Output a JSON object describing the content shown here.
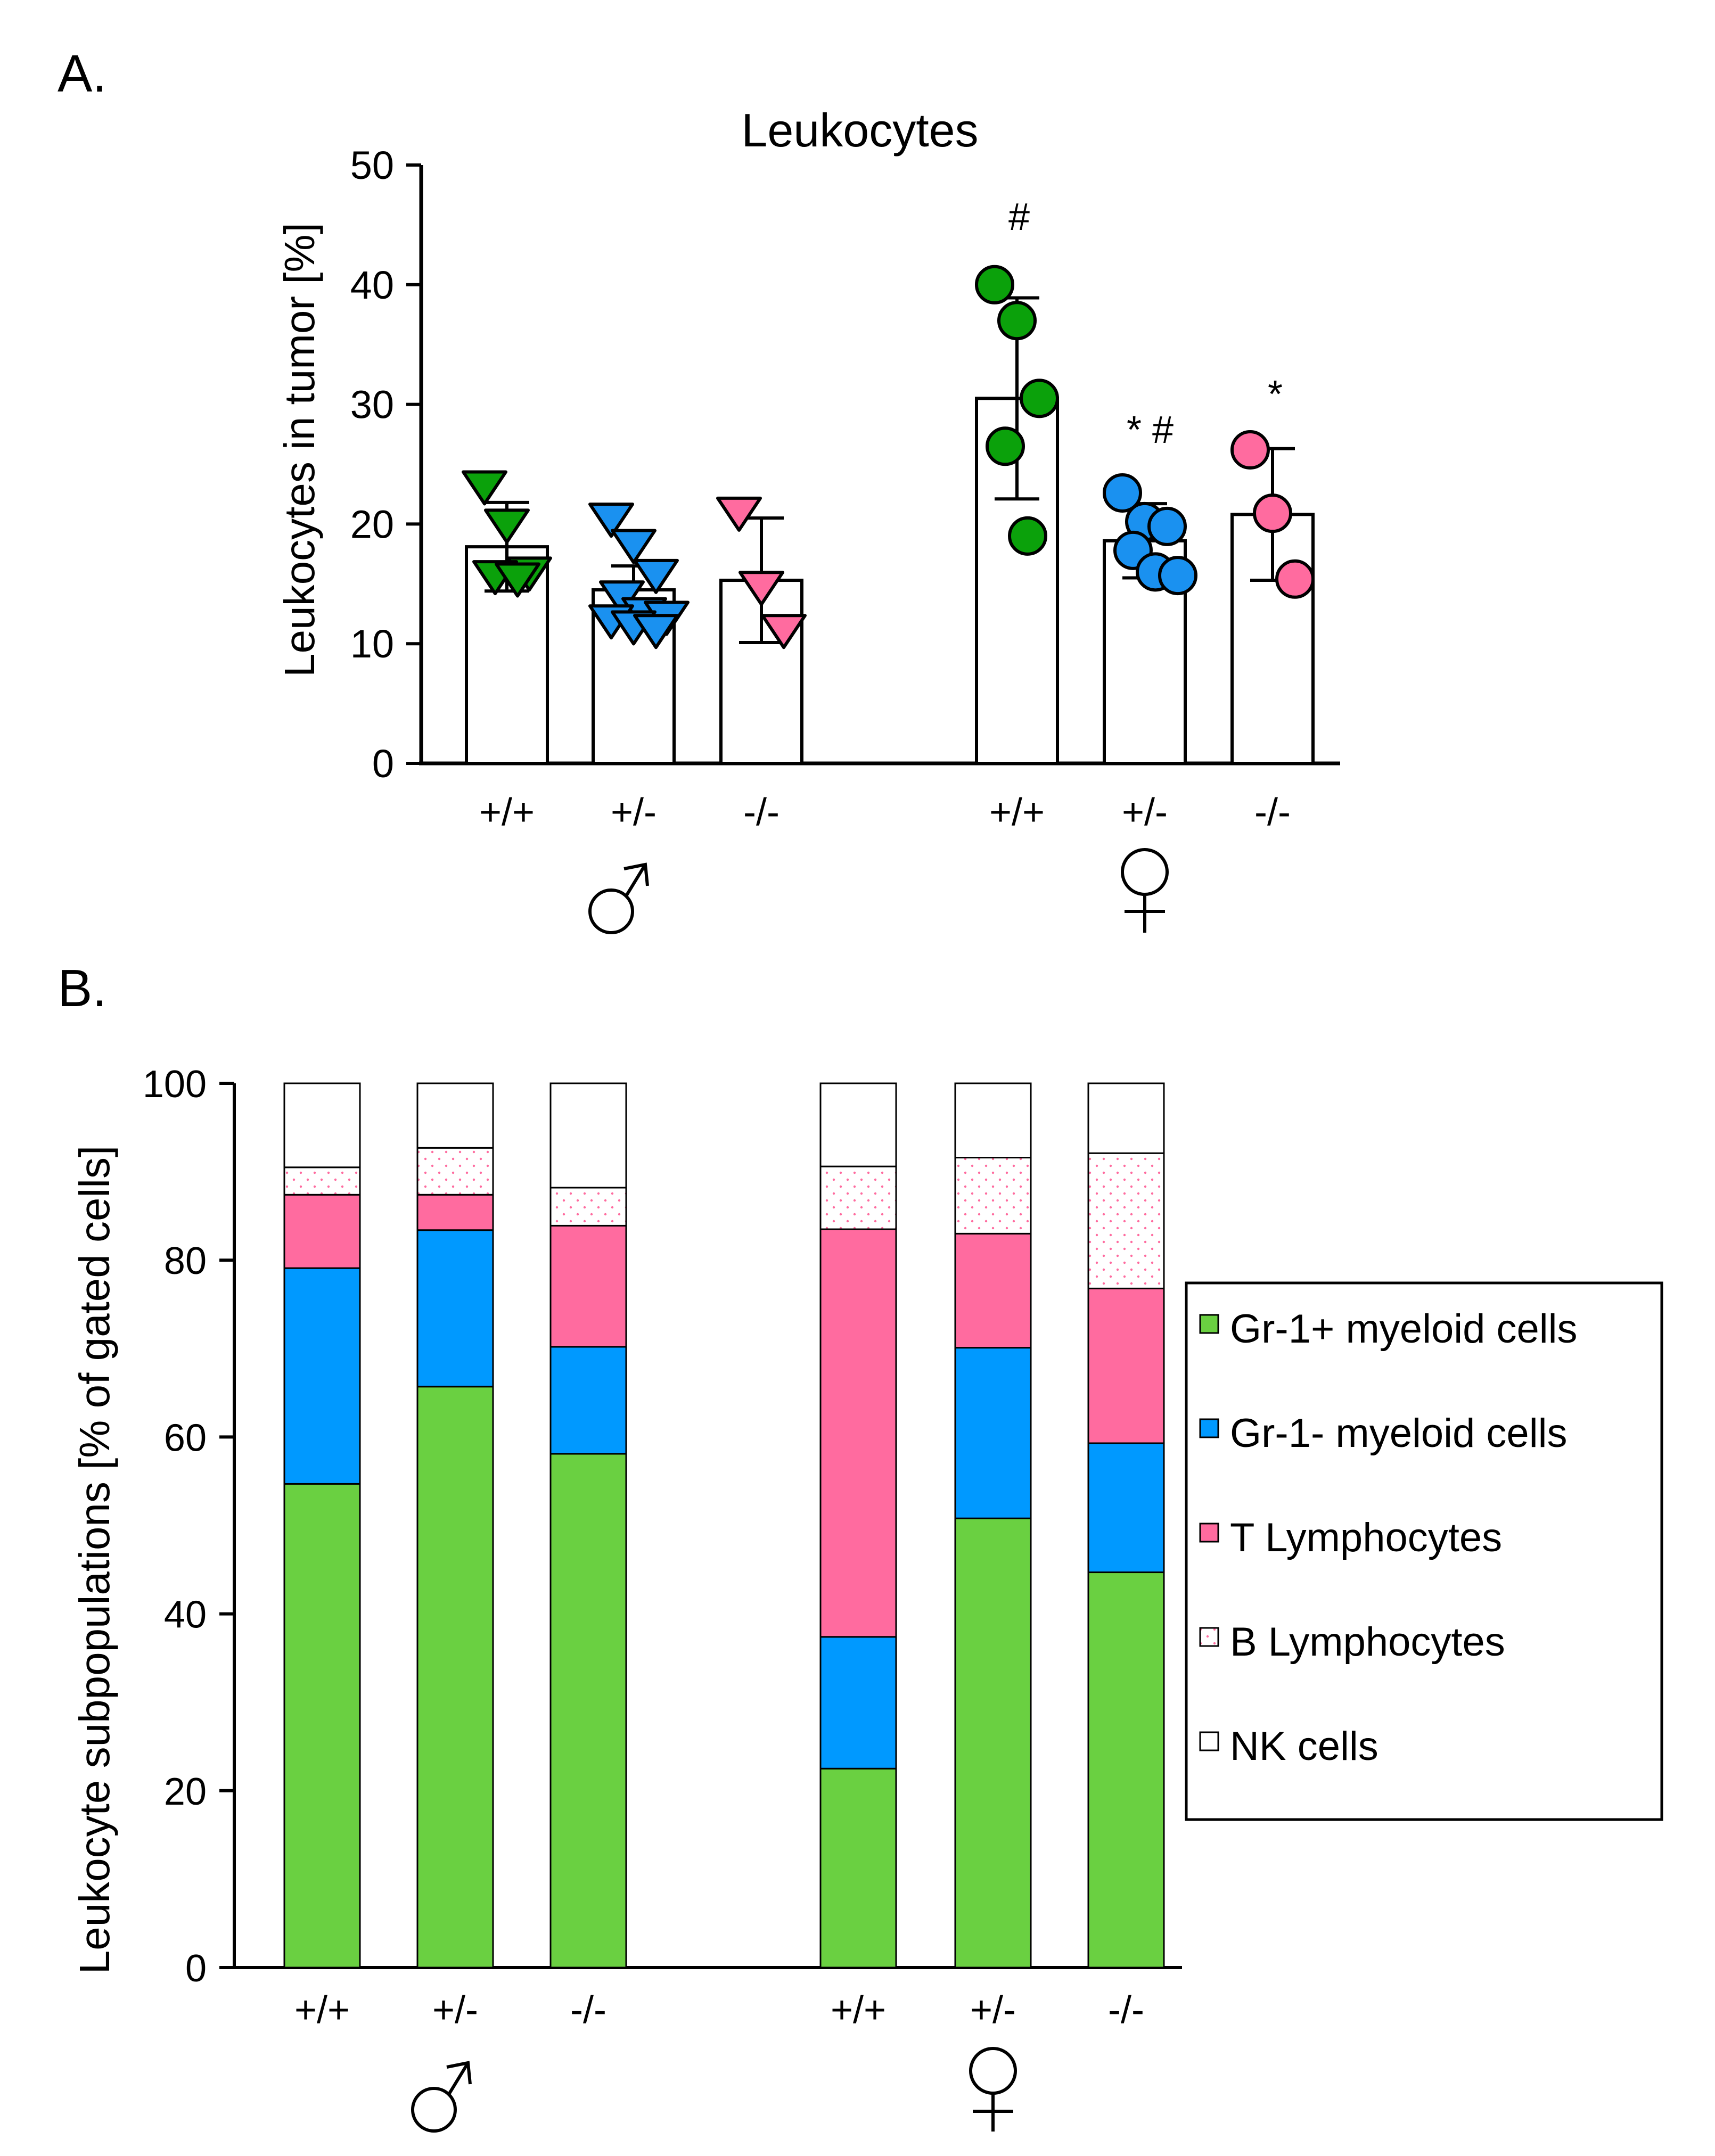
{
  "colors": {
    "green": "#6AD041",
    "green_dark": "#0BA10B",
    "blue": "#0099FF",
    "blue_dark": "#1A91F0",
    "pink": "#FF6B9F",
    "pink_dots": "#FF6B9F",
    "axis": "#000000",
    "bar_fill": "#FFFFFF"
  },
  "chart_data": [
    {
      "type": "bar",
      "panel_label": "A.",
      "title": "Leukocytes",
      "ylabel": "Leukocytes in tumor [%]",
      "xlabel": "",
      "ylim": [
        0,
        50
      ],
      "yticks": [
        "0",
        "10",
        "20",
        "30",
        "40",
        "50"
      ],
      "categories": [
        "+/+",
        "+/-",
        "-/-",
        "+/+",
        "+/-",
        "-/-"
      ],
      "groups": [
        {
          "symbol": "♂",
          "name": "male",
          "indices": [
            0,
            1,
            2
          ]
        },
        {
          "symbol": "♀",
          "name": "female",
          "indices": [
            3,
            4,
            5
          ]
        }
      ],
      "means": [
        18.1,
        14.5,
        15.3,
        30.5,
        18.6,
        20.8
      ],
      "sd": [
        3.7,
        2.0,
        5.2,
        8.4,
        3.1,
        5.5
      ],
      "points": [
        [
          23.2,
          20.0,
          16.0,
          15.7,
          15.5
        ],
        [
          20.5,
          18.3,
          15.8,
          14.0,
          12.6,
          12.3,
          12.0,
          11.5,
          11.2
        ],
        [
          21.0,
          14.8,
          11.2
        ],
        [
          40.0,
          37.0,
          30.5,
          26.5,
          19.0
        ],
        [
          22.6,
          20.2,
          19.8,
          17.8,
          16.0,
          15.7
        ],
        [
          26.2,
          20.9,
          15.4
        ]
      ],
      "marker_shape": [
        "triangle-down",
        "triangle-down",
        "triangle-down",
        "circle",
        "circle",
        "circle"
      ],
      "marker_color": [
        "green_dark",
        "blue_dark",
        "pink",
        "green_dark",
        "blue_dark",
        "pink"
      ],
      "annotations": [
        "",
        "",
        "",
        "#",
        "* #",
        "*"
      ]
    },
    {
      "type": "bar",
      "stacked": true,
      "panel_label": "B.",
      "title": "",
      "ylabel": "Leukocyte subpopulations [% of gated cells]",
      "xlabel": "",
      "ylim": [
        0,
        100
      ],
      "yticks": [
        "0",
        "20",
        "40",
        "60",
        "80",
        "100"
      ],
      "categories": [
        "+/+",
        "+/-",
        "-/-",
        "+/+",
        "+/-",
        "-/-"
      ],
      "groups": [
        {
          "symbol": "♂",
          "name": "male",
          "indices": [
            0,
            1,
            2
          ]
        },
        {
          "symbol": "♀",
          "name": "female",
          "indices": [
            3,
            4,
            5
          ]
        }
      ],
      "series": [
        {
          "name": "Gr-1+ myeloid cells",
          "color": "green",
          "pattern": "solid",
          "values": [
            54.7,
            65.7,
            58.1,
            22.5,
            50.8,
            44.7
          ]
        },
        {
          "name": "Gr-1- myeloid cells",
          "color": "blue",
          "pattern": "solid",
          "values": [
            24.4,
            17.7,
            12.1,
            14.9,
            19.3,
            14.6
          ]
        },
        {
          "name": "T Lymphocytes",
          "color": "pink",
          "pattern": "solid",
          "values": [
            8.3,
            4.0,
            13.7,
            46.1,
            12.9,
            17.5
          ]
        },
        {
          "name": "B Lymphocytes",
          "color": "pink_dots",
          "pattern": "dots",
          "values": [
            3.1,
            5.3,
            4.3,
            7.1,
            8.6,
            15.3
          ]
        },
        {
          "name": "NK cells",
          "color": "white",
          "pattern": "solid",
          "values": [
            9.5,
            7.3,
            11.8,
            9.4,
            8.4,
            7.9
          ]
        }
      ],
      "legend_position": "right"
    }
  ]
}
